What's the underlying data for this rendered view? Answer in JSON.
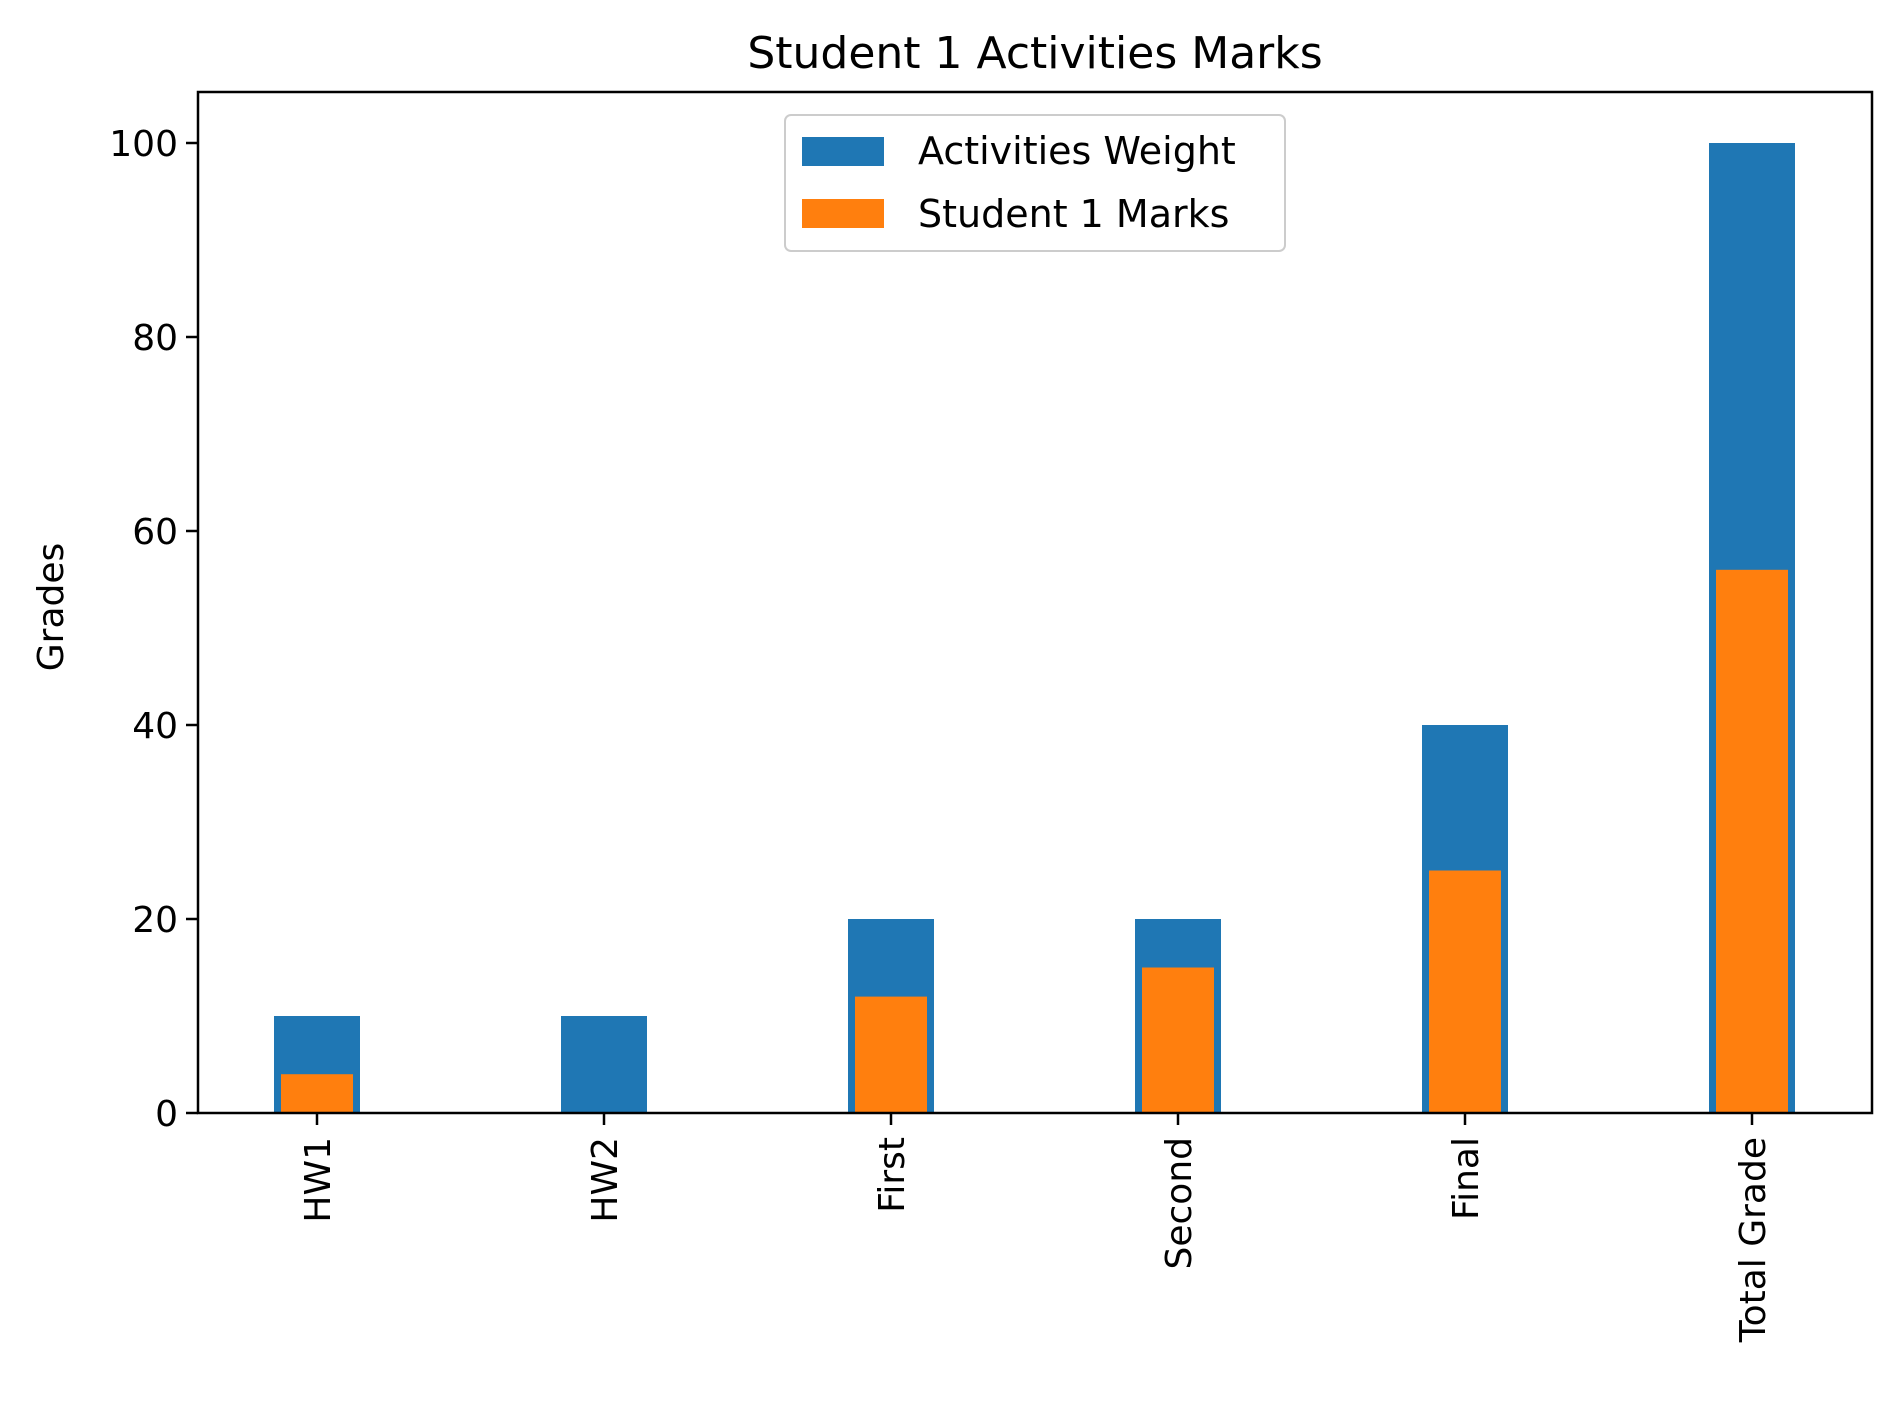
{
  "chart_data": {
    "type": "bar",
    "title": "Student 1 Activities Marks",
    "xlabel": "",
    "ylabel": "Grades",
    "categories": [
      "HW1",
      "HW2",
      "First",
      "Second",
      "Final",
      "Total Grade"
    ],
    "series": [
      {
        "name": "Activities Weight",
        "color": "#1f77b4",
        "values": [
          10,
          10,
          20,
          20,
          40,
          100
        ]
      },
      {
        "name": "Student 1 Marks",
        "color": "#ff7f0e",
        "values": [
          4,
          0,
          12,
          15,
          25,
          56
        ]
      }
    ],
    "ylim": [
      0,
      105
    ],
    "yticks": [
      0,
      20,
      40,
      60,
      80,
      100
    ],
    "grid": false,
    "legend": "upper center",
    "x_tick_rotation": 90
  }
}
